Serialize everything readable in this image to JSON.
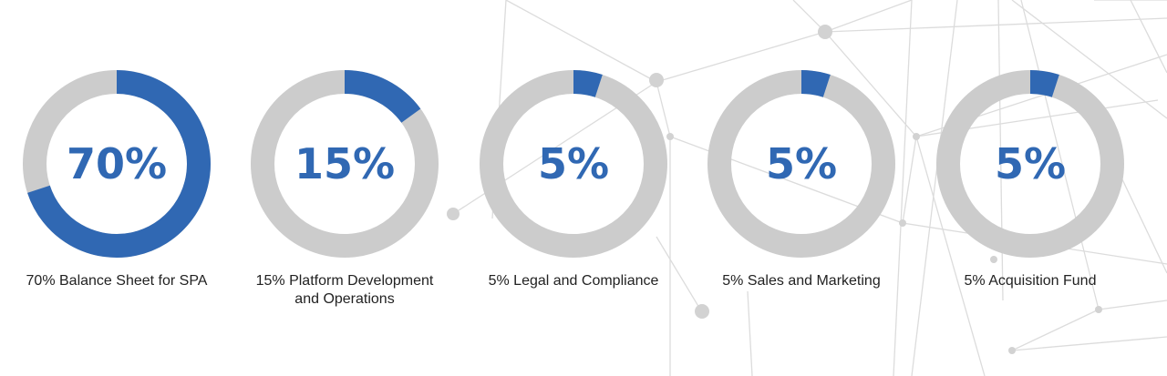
{
  "chart_data": [
    {
      "type": "pie",
      "value": 70,
      "center_label": "70%",
      "caption": "70% Balance Sheet for SPA"
    },
    {
      "type": "pie",
      "value": 15,
      "center_label": "15%",
      "caption": "15% Platform Development and Operations"
    },
    {
      "type": "pie",
      "value": 5,
      "center_label": "5%",
      "caption": "5% Legal and Compliance"
    },
    {
      "type": "pie",
      "value": 5,
      "center_label": "5%",
      "caption": "5% Sales and Marketing"
    },
    {
      "type": "pie",
      "value": 5,
      "center_label": "5%",
      "caption": "5% Acquisition Fund"
    }
  ],
  "colors": {
    "accent": "#3068b3",
    "track": "#cccccc",
    "background_lines": "#dcdcdc",
    "background_dots": "#d2d2d2"
  }
}
